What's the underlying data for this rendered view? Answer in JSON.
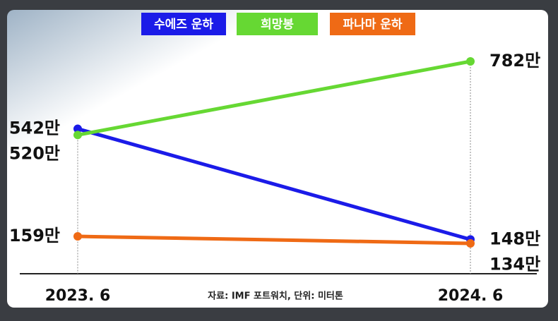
{
  "chart_data": {
    "type": "line",
    "categories": [
      "2023. 6",
      "2024. 6"
    ],
    "series": [
      {
        "name": "수에즈 운하",
        "color": "#1b1be8",
        "values": [
          542,
          148
        ],
        "value_labels": [
          "542만",
          "148만"
        ]
      },
      {
        "name": "희망봉",
        "color": "#66d833",
        "values": [
          520,
          782
        ],
        "value_labels": [
          "520만",
          "782만"
        ]
      },
      {
        "name": "파나마 운하",
        "color": "#ef6a15",
        "values": [
          159,
          134
        ],
        "value_labels": [
          "159만",
          "134만"
        ]
      }
    ],
    "source": "자료: IMF 포트워치, 단위: 미터톤"
  }
}
